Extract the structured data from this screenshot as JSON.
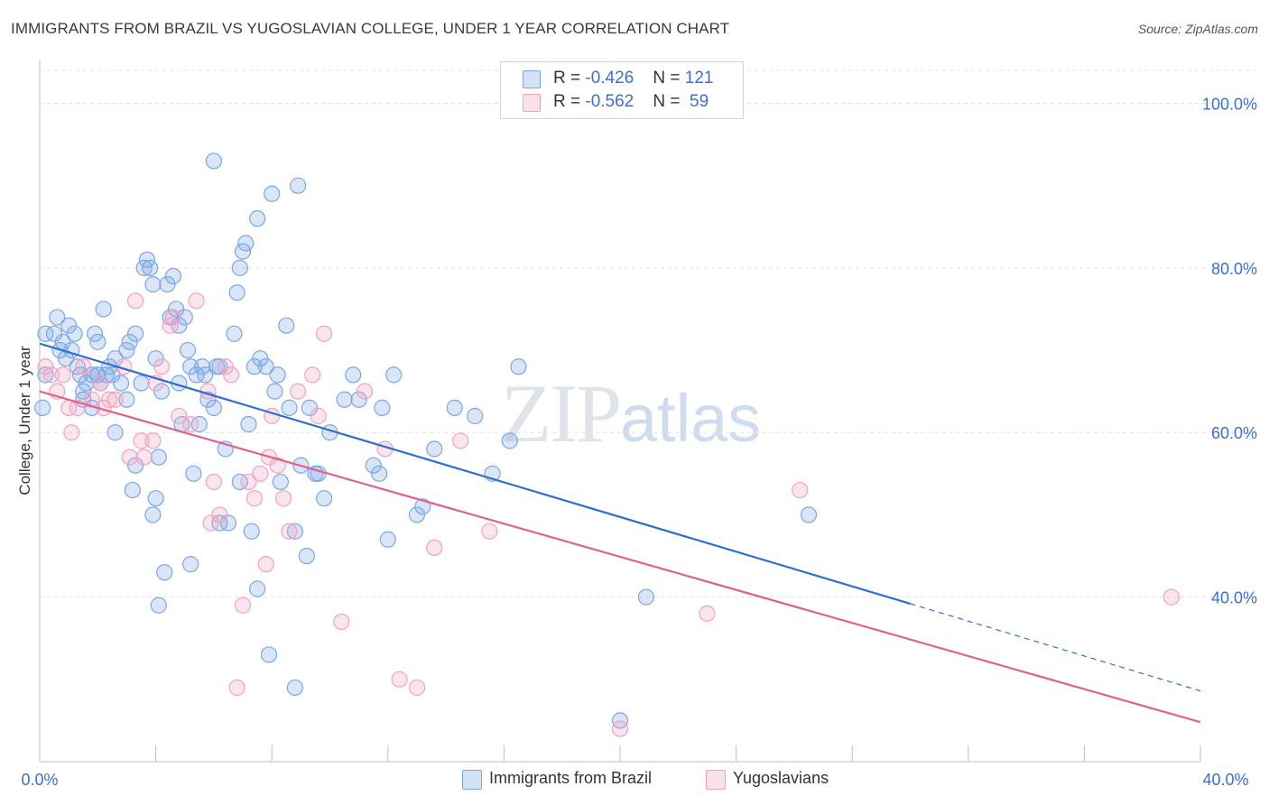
{
  "header": {
    "title": "IMMIGRANTS FROM BRAZIL VS YUGOSLAVIAN COLLEGE, UNDER 1 YEAR CORRELATION CHART",
    "source": "Source: ZipAtlas.com"
  },
  "watermark": {
    "zip": "ZIP",
    "atlas": "atlas"
  },
  "legend": {
    "rows": [
      {
        "r_label": "R = ",
        "r_value": "-0.426",
        "n_label": "N = ",
        "n_value": "121",
        "color": "#7aa7e6"
      },
      {
        "r_label": "R = ",
        "r_value": "-0.562",
        "n_label": "N = ",
        "n_value": " 59",
        "color": "#f2a2be"
      }
    ]
  },
  "bottom_legend": {
    "items": [
      {
        "label": "Immigrants from Brazil",
        "color": "#7aa7e6"
      },
      {
        "label": "Yugoslavians",
        "color": "#f2a2be"
      }
    ]
  },
  "chart_data": {
    "type": "scatter",
    "title": "IMMIGRANTS FROM BRAZIL VS YUGOSLAVIAN COLLEGE, UNDER 1 YEAR CORRELATION CHART",
    "xlabel": "",
    "ylabel": "College, Under 1 year",
    "xlim": [
      0,
      40
    ],
    "ylim": [
      20,
      104
    ],
    "x_tick_labels": [
      "0.0%",
      "40.0%"
    ],
    "y_ticks": [
      40,
      60,
      80,
      100
    ],
    "y_tick_labels": [
      "40.0%",
      "60.0%",
      "80.0%",
      "100.0%"
    ],
    "grid": true,
    "legend_position": "top-center",
    "series": [
      {
        "name": "Immigrants from Brazil",
        "color": "#7aa7e6",
        "line_color": "#2f6fd0",
        "trend": {
          "x": [
            0.0,
            30.0
          ],
          "y": [
            70.8,
            39.2
          ],
          "dashed_to": [
            40.0,
            28.6
          ]
        },
        "points": [
          [
            0.2,
            72
          ],
          [
            0.2,
            67
          ],
          [
            0.1,
            63
          ],
          [
            0.5,
            72
          ],
          [
            0.6,
            74
          ],
          [
            0.7,
            70
          ],
          [
            0.8,
            71
          ],
          [
            0.9,
            69
          ],
          [
            1.0,
            73
          ],
          [
            1.2,
            72
          ],
          [
            1.3,
            68
          ],
          [
            1.4,
            67
          ],
          [
            1.5,
            65
          ],
          [
            1.6,
            66
          ],
          [
            1.8,
            63
          ],
          [
            2.0,
            67
          ],
          [
            2.1,
            66
          ],
          [
            2.2,
            75
          ],
          [
            2.3,
            67
          ],
          [
            2.4,
            68
          ],
          [
            2.5,
            67
          ],
          [
            2.6,
            69
          ],
          [
            2.0,
            71
          ],
          [
            1.1,
            70
          ],
          [
            1.9,
            72
          ],
          [
            2.8,
            66
          ],
          [
            3.0,
            70
          ],
          [
            3.1,
            71
          ],
          [
            3.3,
            72
          ],
          [
            3.5,
            66
          ],
          [
            3.6,
            80
          ],
          [
            3.7,
            81
          ],
          [
            3.8,
            80
          ],
          [
            3.9,
            78
          ],
          [
            4.0,
            69
          ],
          [
            4.1,
            57
          ],
          [
            4.2,
            65
          ],
          [
            4.4,
            78
          ],
          [
            4.5,
            74
          ],
          [
            4.6,
            79
          ],
          [
            4.7,
            75
          ],
          [
            4.8,
            73
          ],
          [
            4.9,
            61
          ],
          [
            5.0,
            74
          ],
          [
            5.1,
            70
          ],
          [
            5.2,
            68
          ],
          [
            5.3,
            55
          ],
          [
            5.4,
            67
          ],
          [
            5.6,
            68
          ],
          [
            5.7,
            67
          ],
          [
            5.8,
            64
          ],
          [
            6.0,
            63
          ],
          [
            6.1,
            68
          ],
          [
            6.2,
            68
          ],
          [
            6.4,
            58
          ],
          [
            6.5,
            49
          ],
          [
            6.7,
            72
          ],
          [
            6.8,
            77
          ],
          [
            6.9,
            80
          ],
          [
            7.0,
            82
          ],
          [
            7.1,
            83
          ],
          [
            7.2,
            61
          ],
          [
            7.4,
            68
          ],
          [
            7.5,
            86
          ],
          [
            7.6,
            69
          ],
          [
            7.8,
            68
          ],
          [
            8.0,
            89
          ],
          [
            8.2,
            67
          ],
          [
            8.3,
            54
          ],
          [
            8.5,
            73
          ],
          [
            8.6,
            63
          ],
          [
            8.8,
            48
          ],
          [
            9.0,
            56
          ],
          [
            8.9,
            90
          ],
          [
            9.3,
            63
          ],
          [
            9.5,
            55
          ],
          [
            9.6,
            55
          ],
          [
            9.8,
            52
          ],
          [
            10.0,
            60
          ],
          [
            10.5,
            64
          ],
          [
            10.8,
            67
          ],
          [
            11.0,
            64
          ],
          [
            11.5,
            56
          ],
          [
            11.7,
            55
          ],
          [
            11.8,
            63
          ],
          [
            12.0,
            47
          ],
          [
            12.2,
            67
          ],
          [
            13.0,
            50
          ],
          [
            13.2,
            51
          ],
          [
            13.6,
            58
          ],
          [
            14.3,
            63
          ],
          [
            15.0,
            62
          ],
          [
            15.6,
            55
          ],
          [
            16.2,
            59
          ],
          [
            16.5,
            68
          ],
          [
            20.9,
            40
          ],
          [
            26.5,
            50
          ],
          [
            6.0,
            93
          ],
          [
            2.0,
            67
          ],
          [
            3.2,
            53
          ],
          [
            3.9,
            50
          ],
          [
            4.3,
            43
          ],
          [
            4.1,
            39
          ],
          [
            5.2,
            44
          ],
          [
            6.2,
            49
          ],
          [
            7.5,
            41
          ],
          [
            7.9,
            33
          ],
          [
            8.8,
            29
          ],
          [
            20.0,
            25
          ],
          [
            4.0,
            52
          ],
          [
            4.8,
            66
          ],
          [
            3.0,
            64
          ],
          [
            2.6,
            60
          ],
          [
            1.5,
            64
          ],
          [
            1.8,
            67
          ],
          [
            5.5,
            61
          ],
          [
            6.9,
            54
          ],
          [
            9.2,
            45
          ],
          [
            7.3,
            48
          ],
          [
            3.3,
            56
          ],
          [
            8.1,
            65
          ]
        ]
      },
      {
        "name": "Yugoslavians",
        "color": "#f2a2be",
        "line_color": "#e0608e",
        "trend": {
          "x": [
            0.0,
            40.0
          ],
          "y": [
            65.0,
            24.8
          ]
        },
        "points": [
          [
            0.2,
            68
          ],
          [
            0.4,
            67
          ],
          [
            0.6,
            65
          ],
          [
            0.8,
            67
          ],
          [
            1.1,
            60
          ],
          [
            1.3,
            63
          ],
          [
            1.5,
            68
          ],
          [
            1.8,
            64
          ],
          [
            2.2,
            63
          ],
          [
            2.4,
            64
          ],
          [
            2.6,
            64
          ],
          [
            2.9,
            68
          ],
          [
            3.1,
            57
          ],
          [
            3.5,
            59
          ],
          [
            3.6,
            57
          ],
          [
            3.9,
            59
          ],
          [
            4.0,
            66
          ],
          [
            4.2,
            68
          ],
          [
            4.5,
            73
          ],
          [
            4.8,
            62
          ],
          [
            5.2,
            61
          ],
          [
            5.4,
            76
          ],
          [
            5.8,
            65
          ],
          [
            6.0,
            54
          ],
          [
            6.2,
            50
          ],
          [
            6.4,
            68
          ],
          [
            6.6,
            67
          ],
          [
            6.8,
            29
          ],
          [
            7.0,
            39
          ],
          [
            7.2,
            54
          ],
          [
            7.4,
            52
          ],
          [
            7.6,
            55
          ],
          [
            7.8,
            44
          ],
          [
            8.0,
            62
          ],
          [
            8.2,
            56
          ],
          [
            8.4,
            52
          ],
          [
            8.6,
            48
          ],
          [
            8.9,
            65
          ],
          [
            9.4,
            67
          ],
          [
            9.6,
            62
          ],
          [
            9.8,
            72
          ],
          [
            10.4,
            37
          ],
          [
            11.2,
            65
          ],
          [
            11.9,
            58
          ],
          [
            12.4,
            30
          ],
          [
            13.0,
            29
          ],
          [
            13.6,
            46
          ],
          [
            14.5,
            59
          ],
          [
            15.5,
            48
          ],
          [
            20.0,
            24
          ],
          [
            23.0,
            38
          ],
          [
            26.2,
            53
          ],
          [
            39.0,
            40
          ],
          [
            3.3,
            76
          ],
          [
            4.6,
            74
          ],
          [
            2.1,
            66
          ],
          [
            1.0,
            63
          ],
          [
            5.9,
            49
          ],
          [
            7.9,
            57
          ]
        ]
      }
    ]
  }
}
